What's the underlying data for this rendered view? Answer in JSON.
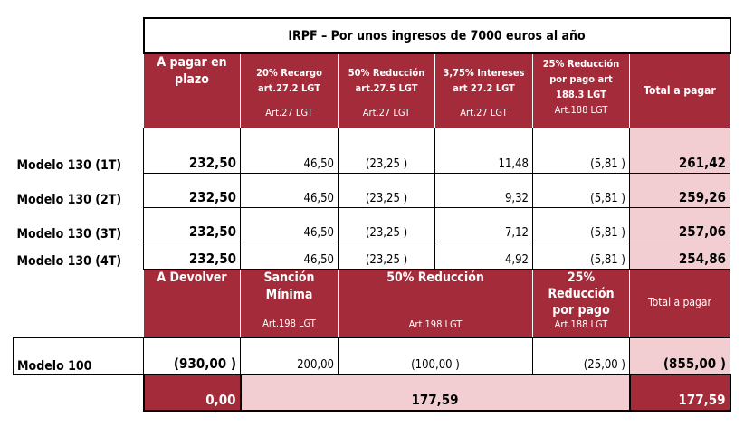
{
  "title": "IRPF – Por unos ingresos de 7000 euros al año",
  "header1": [
    {
      "main": "A pagar en plazo",
      "sub": ""
    },
    {
      "main": "20% Recargo art.27.2 LGT",
      "sub": "Art.27 LGT"
    },
    {
      "main": "50% Reducción art.27.5 LGT",
      "sub": "Art.27 LGT"
    },
    {
      "main": "3,75% Intereses art 27.2 LGT",
      "sub": "Art.27 LGT"
    },
    {
      "main": "25% Reducción por pago art 188.3 LGT",
      "sub": "Art.188 LGT"
    },
    {
      "main": "Total a pagar",
      "sub": ""
    }
  ],
  "rows130": [
    {
      "label": "Modelo 130 (1T)",
      "values": [
        "232,50",
        "46,50",
        "(23,25 )",
        "11,48",
        "(5,81 )",
        "261,42"
      ]
    },
    {
      "label": "Modelo 130 (2T)",
      "values": [
        "232,50",
        "46,50",
        "(23,25 )",
        "9,32",
        "(5,81 )",
        "259,26"
      ]
    },
    {
      "label": "Modelo 130 (3T)",
      "values": [
        "232,50",
        "46,50",
        "(23,25 )",
        "7,12",
        "(5,81 )",
        "257,06"
      ]
    },
    {
      "label": "Modelo 130 (4T)",
      "values": [
        "232,50",
        "46,50",
        "(23,25 )",
        "4,92",
        "(5,81 )",
        "254,86"
      ]
    }
  ],
  "header2": [
    {
      "main": "A Devolver",
      "sub": ""
    },
    {
      "main": "Sanción Mínima",
      "sub": "Art.198 LGT"
    },
    {
      "main": "50% Reducción",
      "sub": "Art.198 LGT"
    },
    {
      "main": "25% Reducción por pago",
      "sub": "Art.188 LGT"
    },
    {
      "main": "Total a pagar",
      "sub": ""
    }
  ],
  "row100": {
    "label": "Modelo 100",
    "values": [
      "(930,00 )",
      "200,00",
      "(100,00 )",
      "(25,00 )",
      "(855,00 )"
    ]
  },
  "totals": {
    "devolver": "0,00",
    "middle": "177,59",
    "total": "177,59"
  },
  "colors": {
    "header": "#A32B3A",
    "highlight": "#F2CED2"
  }
}
